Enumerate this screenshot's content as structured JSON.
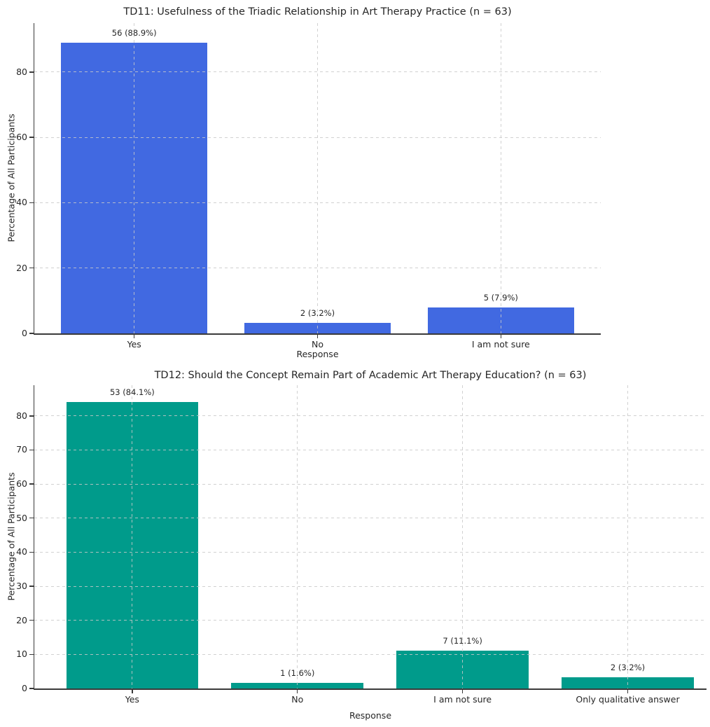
{
  "figure": {
    "background": "#ffffff",
    "text_color": "#262626",
    "axis_color": "#3a3a3a",
    "grid_color": "#c9c9c9"
  },
  "chart_data": [
    {
      "type": "bar",
      "title": "TD11: Usefulness of the Triadic Relationship in Art Therapy Practice (n = 63)",
      "xlabel": "Response",
      "ylabel": "Percentage of All Participants",
      "categories": [
        "Yes",
        "No",
        "I am not sure"
      ],
      "counts": [
        56,
        2,
        5
      ],
      "values": [
        88.9,
        3.2,
        7.9
      ],
      "bar_labels": [
        "56 (88.9%)",
        "2 (3.2%)",
        "5 (7.9%)"
      ],
      "n_total": 63,
      "bar_color": "#4169e1",
      "yticks": [
        0,
        20,
        40,
        60,
        80
      ],
      "ylim": [
        0,
        95
      ],
      "grid": "both-dashed",
      "legend": "none"
    },
    {
      "type": "bar",
      "title": "TD12: Should the Concept Remain Part of Academic Art Therapy Education? (n = 63)",
      "xlabel": "Response",
      "ylabel": "Percentage of All Participants",
      "categories": [
        "Yes",
        "No",
        "I am not sure",
        "Only qualitative answer"
      ],
      "counts": [
        53,
        1,
        7,
        2
      ],
      "values": [
        84.1,
        1.6,
        11.1,
        3.2
      ],
      "bar_labels": [
        "53 (84.1%)",
        "1 (1.6%)",
        "7 (11.1%)",
        "2 (3.2%)"
      ],
      "n_total": 63,
      "bar_color": "#009b8b",
      "yticks": [
        0,
        10,
        20,
        30,
        40,
        50,
        60,
        70,
        80
      ],
      "ylim": [
        0,
        89
      ],
      "grid": "both-dashed",
      "legend": "none"
    }
  ]
}
